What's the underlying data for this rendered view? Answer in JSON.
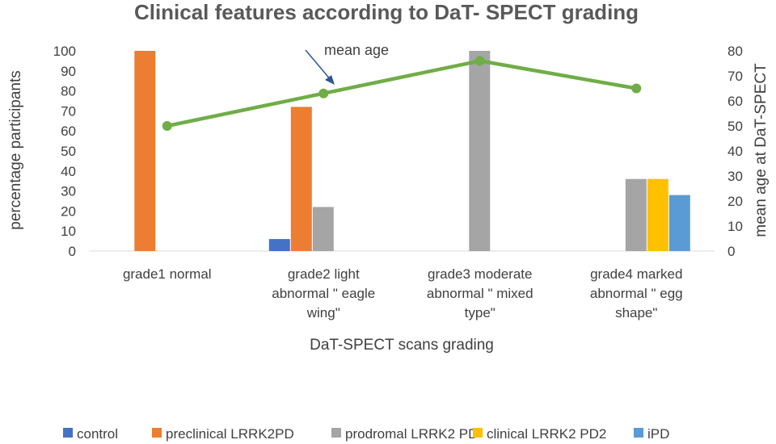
{
  "chart_data": {
    "type": "bar",
    "title": "Clinical features according to DaT- SPECT grading",
    "xlabel": "DaT-SPECT scans grading",
    "ylabel": "percentage participants",
    "y2label": "mean age at DaT-SPECT",
    "ylim": [
      0,
      100
    ],
    "y2lim": [
      0,
      80
    ],
    "yticks": [
      "0",
      "10",
      "20",
      "30",
      "40",
      "50",
      "60",
      "70",
      "80",
      "90",
      "100"
    ],
    "y2ticks": [
      "0",
      "10",
      "20",
      "30",
      "40",
      "50",
      "60",
      "70",
      "80"
    ],
    "categories": [
      [
        "grade1 normal"
      ],
      [
        "grade2 light",
        "abnormal \" eagle",
        "wing\""
      ],
      [
        "grade3 moderate",
        "abnormal \" mixed",
        "type\""
      ],
      [
        "grade4 marked",
        "abnormal \" egg",
        "shape\""
      ]
    ],
    "series": [
      {
        "name": "control",
        "color": "#4472C4",
        "values": [
          0,
          6,
          0,
          0
        ]
      },
      {
        "name": "preclinical LRRK2PD",
        "color": "#ED7D31",
        "values": [
          100,
          72,
          0,
          0
        ]
      },
      {
        "name": "prodromal LRRK2 PD",
        "color": "#A5A5A5",
        "values": [
          0,
          22,
          100,
          36
        ]
      },
      {
        "name": "clinical LRRK2 PD2",
        "color": "#FFC000",
        "values": [
          0,
          0,
          0,
          36
        ]
      },
      {
        "name": "iPD",
        "color": "#5B9BD5",
        "values": [
          0,
          0,
          0,
          28
        ]
      }
    ],
    "line_series": {
      "name": "mean age",
      "color": "#70AD47",
      "axis": "secondary",
      "values": [
        50,
        63,
        76,
        65
      ]
    },
    "annotation": "mean age",
    "legend_position": "bottom",
    "grid": false
  }
}
